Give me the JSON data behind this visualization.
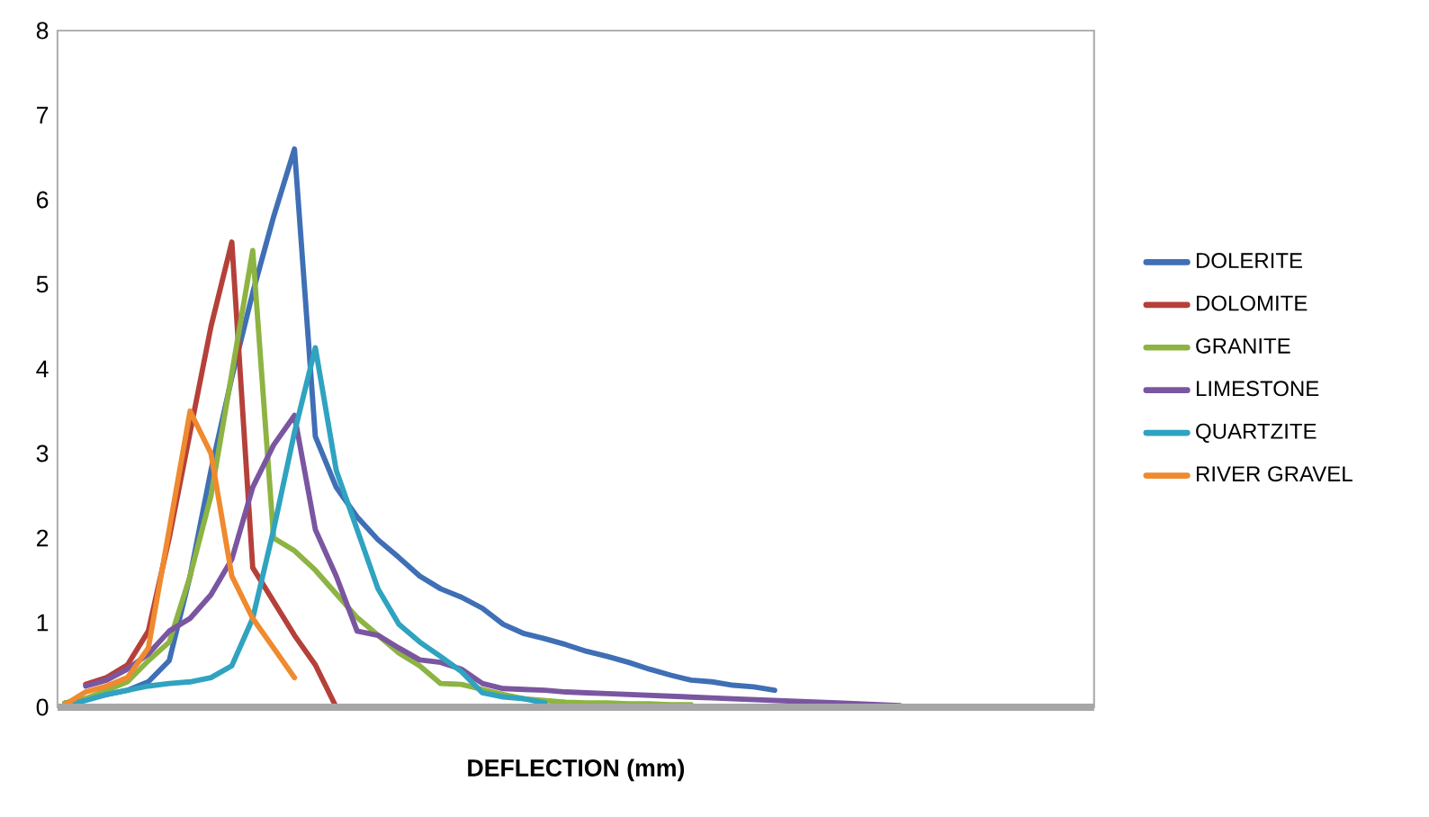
{
  "chart_data": {
    "type": "line",
    "xlabel": "DEFLECTION (mm)",
    "categories": [
      null,
      null,
      null,
      null,
      null,
      null,
      null,
      null,
      null,
      null,
      null,
      null,
      null,
      null,
      null,
      null,
      null,
      null,
      null,
      null,
      null,
      null,
      null,
      null,
      null,
      null,
      null,
      null,
      null,
      null,
      null,
      null,
      null,
      null,
      null,
      null,
      null,
      null,
      null,
      null,
      null,
      null,
      null,
      null,
      null,
      null,
      null,
      null,
      null
    ],
    "series": [
      {
        "name": "DOLERITE",
        "color": "#3f6fb5",
        "values": [
          0.05,
          0.1,
          0.15,
          0.2,
          0.3,
          0.55,
          1.55,
          2.8,
          3.9,
          4.9,
          5.8,
          6.6,
          3.2,
          2.6,
          2.25,
          1.98,
          1.77,
          1.55,
          1.4,
          1.3,
          1.17,
          0.98,
          0.87,
          0.81,
          0.74,
          0.66,
          0.6,
          0.53,
          0.45,
          0.38,
          0.32,
          0.3,
          0.26,
          0.24,
          0.2,
          null,
          null,
          null,
          null,
          null,
          null,
          null,
          null,
          null,
          null,
          null,
          null,
          null,
          null
        ]
      },
      {
        "name": "DOLOMITE",
        "color": "#b5403a",
        "values": [
          null,
          0.27,
          0.35,
          0.5,
          0.9,
          2.0,
          3.25,
          4.5,
          5.5,
          1.65,
          1.25,
          0.85,
          0.5,
          0,
          null,
          null,
          null,
          null,
          null,
          null,
          null,
          null,
          null,
          null,
          null,
          null,
          null,
          null,
          null,
          null,
          null,
          null,
          null,
          null,
          null,
          null,
          null,
          null,
          null,
          null,
          null,
          null,
          null,
          null,
          null,
          null,
          null,
          null,
          null
        ]
      },
      {
        "name": "GRANITE",
        "color": "#8db443",
        "values": [
          0.05,
          0.1,
          0.2,
          0.3,
          0.55,
          0.77,
          1.55,
          2.5,
          3.95,
          5.4,
          2.0,
          1.85,
          1.62,
          1.34,
          1.06,
          0.85,
          0.64,
          0.49,
          0.28,
          0.27,
          0.21,
          0.15,
          0.1,
          0.08,
          0.06,
          0.05,
          0.05,
          0.04,
          0.04,
          0.03,
          0.03,
          null,
          null,
          null,
          null,
          null,
          null,
          null,
          null,
          null,
          null,
          null,
          null,
          null,
          null,
          null,
          null,
          null,
          null
        ]
      },
      {
        "name": "LIMESTONE",
        "color": "#7a56a0",
        "values": [
          null,
          0.25,
          0.32,
          0.45,
          0.63,
          0.9,
          1.05,
          1.33,
          1.75,
          2.6,
          3.1,
          3.45,
          2.1,
          1.55,
          0.9,
          0.85,
          0.7,
          0.56,
          0.53,
          0.45,
          0.28,
          0.22,
          0.21,
          0.2,
          0.18,
          0.17,
          0.16,
          0.15,
          0.14,
          0.13,
          0.12,
          0.11,
          0.1,
          0.09,
          0.08,
          0.07,
          0.06,
          0.05,
          0.04,
          0.03,
          0.02,
          null,
          null,
          null,
          null,
          null,
          null,
          null,
          null
        ]
      },
      {
        "name": "QUARTZITE",
        "color": "#2fa3c0",
        "values": [
          0.02,
          0.08,
          0.15,
          0.2,
          0.25,
          0.28,
          0.3,
          0.35,
          0.49,
          1.05,
          2.1,
          3.25,
          4.25,
          2.8,
          2.1,
          1.4,
          0.98,
          0.77,
          0.6,
          0.42,
          0.17,
          0.12,
          0.1,
          0.05,
          null,
          null,
          null,
          null,
          null,
          null,
          null,
          null,
          null,
          null,
          null,
          null,
          null,
          null,
          null,
          null,
          null,
          null,
          null,
          null,
          null,
          null,
          null,
          null,
          null
        ]
      },
      {
        "name": "RIVER GRAVEL",
        "color": "#ef8a2f",
        "values": [
          0.03,
          0.18,
          0.25,
          0.35,
          0.7,
          2.1,
          3.5,
          3.0,
          1.55,
          1.05,
          0.7,
          0.35,
          null,
          null,
          null,
          null,
          null,
          null,
          null,
          null,
          null,
          null,
          null,
          null,
          null,
          null,
          null,
          null,
          null,
          null,
          null,
          null,
          null,
          null,
          null,
          null,
          null,
          null,
          null,
          null,
          null,
          null,
          null,
          null,
          null,
          null,
          null,
          null,
          null
        ]
      }
    ],
    "ylim": [
      0,
      8
    ],
    "yticks": [
      0,
      1,
      2,
      3,
      4,
      5,
      6,
      7,
      8
    ],
    "grid": false,
    "legend": "right",
    "marker": "none",
    "line_style": "solid",
    "tick_labels": "y"
  }
}
